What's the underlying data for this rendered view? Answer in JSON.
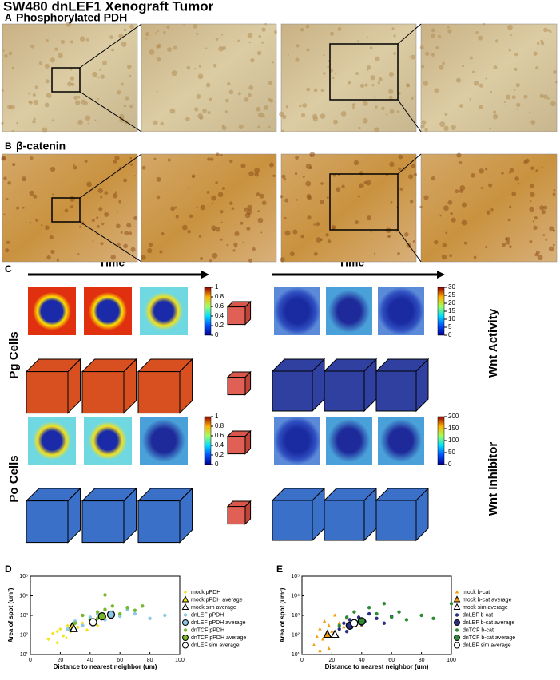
{
  "title": "SW480 dnLEF1 Xenograft Tumor",
  "panels": {
    "a": {
      "label": "A",
      "title": "Phosphorylated PDH"
    },
    "b": {
      "label": "B",
      "title": "β-catenin"
    },
    "c": {
      "label": "C",
      "time_labels": [
        "Time",
        "Time"
      ],
      "row_labels": [
        "Pg Cells",
        "Po Cells"
      ],
      "side_labels": [
        "Wnt Activity",
        "Wnt Inhibitor"
      ],
      "colorbars": [
        {
          "lim": [
            0,
            1
          ],
          "ticks": [
            0,
            0.2,
            0.4,
            0.6,
            0.8,
            1
          ]
        },
        {
          "lim": [
            0,
            30
          ],
          "ticks": [
            0,
            5,
            10,
            15,
            20,
            25,
            30
          ]
        },
        {
          "lim": [
            0,
            1
          ],
          "ticks": [
            0,
            0.2,
            0.4,
            0.6,
            0.8,
            1
          ]
        },
        {
          "lim": [
            0,
            200
          ],
          "ticks": [
            0,
            50,
            100,
            150,
            200
          ]
        }
      ]
    }
  },
  "chart_data": [
    {
      "type": "scatter",
      "label": "D",
      "xlabel": "Distance to nearest neighbor (um)",
      "ylabel": "Area of spot (um²)",
      "xlim": [
        0,
        100
      ],
      "xticks": [
        0,
        20,
        40,
        60,
        80,
        100
      ],
      "ylim": [
        10,
        100000
      ],
      "log_y": true,
      "yticks": [
        {
          "value": 10,
          "label": "10¹"
        },
        {
          "value": 100,
          "label": "10²"
        },
        {
          "value": 1000,
          "label": "10³"
        },
        {
          "value": 10000,
          "label": "10⁴"
        },
        {
          "value": 100000,
          "label": "10⁵"
        }
      ],
      "series": [
        {
          "name": "mock pPDH",
          "color": "#f2e41c",
          "marker": "diamond",
          "x": [
            12,
            15,
            18,
            20,
            22,
            25,
            27,
            30,
            32,
            35,
            38,
            42,
            45,
            50,
            18,
            24
          ],
          "y": [
            60,
            120,
            40,
            200,
            90,
            300,
            150,
            500,
            250,
            400,
            180,
            600,
            300,
            800,
            150,
            70
          ]
        },
        {
          "name": "mock pPDH average",
          "color": "#f2e41c",
          "marker": "triangle",
          "edge": "#000",
          "x": [
            28
          ],
          "y": [
            250
          ]
        },
        {
          "name": "mock sim average",
          "color": "#ffffff",
          "marker": "triangle",
          "edge": "#000",
          "x": [
            29
          ],
          "y": [
            200
          ]
        },
        {
          "name": "dnLEF pPDH",
          "color": "#8cc8e6",
          "marker": "circle",
          "x": [
            25,
            30,
            35,
            40,
            45,
            50,
            55,
            60,
            65,
            70,
            80,
            90
          ],
          "y": [
            200,
            500,
            300,
            800,
            1200,
            600,
            1500,
            900,
            2000,
            1200,
            700,
            1000
          ]
        },
        {
          "name": "dnLEF pPDH average",
          "color": "#8cc8e6",
          "marker": "circle",
          "edge": "#000",
          "x": [
            54
          ],
          "y": [
            1100
          ]
        },
        {
          "name": "dnTCF pPDH",
          "color": "#76b82a",
          "marker": "circle",
          "x": [
            30,
            35,
            40,
            45,
            50,
            55,
            60,
            65,
            70,
            75,
            50,
            45
          ],
          "y": [
            400,
            1000,
            600,
            1500,
            2000,
            3000,
            1200,
            2500,
            1800,
            3000,
            11000,
            700
          ]
        },
        {
          "name": "dnTCF pPDH average",
          "color": "#76b82a",
          "marker": "circle",
          "edge": "#000",
          "x": [
            48
          ],
          "y": [
            900
          ]
        },
        {
          "name": "dnLEF sim average",
          "color": "#ffffff",
          "marker": "circle",
          "edge": "#000",
          "x": [
            42
          ],
          "y": [
            450
          ]
        }
      ]
    },
    {
      "type": "scatter",
      "label": "E",
      "xlabel": "Distance to nearest neighbor (um)",
      "ylabel": "Area of spot (um²)",
      "xlim": [
        0,
        100
      ],
      "xticks": [
        0,
        20,
        40,
        60,
        80,
        100
      ],
      "ylim": [
        10,
        100000
      ],
      "log_y": true,
      "yticks": [
        {
          "value": 10,
          "label": "10¹"
        },
        {
          "value": 100,
          "label": "10²"
        },
        {
          "value": 1000,
          "label": "10³"
        },
        {
          "value": 10000,
          "label": "10⁴"
        },
        {
          "value": 100000,
          "label": "10⁵"
        }
      ],
      "series": [
        {
          "name": "mock b-cat",
          "color": "#f39c12",
          "marker": "triangle",
          "x": [
            8,
            10,
            12,
            14,
            15,
            16,
            18,
            20,
            22,
            25,
            28,
            30,
            35,
            40,
            12,
            18
          ],
          "y": [
            30,
            80,
            200,
            60,
            500,
            100,
            300,
            150,
            1000,
            400,
            250,
            700,
            500,
            300,
            15,
            20
          ]
        },
        {
          "name": "mock b-cat average",
          "color": "#f39c12",
          "marker": "triangle",
          "edge": "#000",
          "x": [
            17
          ],
          "y": [
            100
          ]
        },
        {
          "name": "mock sim average",
          "color": "#ffffff",
          "marker": "triangle",
          "edge": "#000",
          "x": [
            22
          ],
          "y": [
            100
          ]
        },
        {
          "name": "dnLEF b-cat",
          "color": "#2b2e83",
          "marker": "circle",
          "x": [
            25,
            28,
            30,
            32,
            35,
            38,
            40,
            42,
            45,
            50,
            55,
            60
          ],
          "y": [
            200,
            400,
            150,
            600,
            300,
            800,
            350,
            500,
            1200,
            700,
            400,
            900
          ]
        },
        {
          "name": "dnLEF b-cat average",
          "color": "#2b2e83",
          "marker": "circle",
          "edge": "#000",
          "x": [
            32
          ],
          "y": [
            300
          ]
        },
        {
          "name": "dnTCF b-cat",
          "color": "#2e8b34",
          "marker": "circle",
          "x": [
            25,
            30,
            35,
            40,
            45,
            50,
            55,
            60,
            65,
            70,
            80,
            88,
            100
          ],
          "y": [
            300,
            800,
            1500,
            600,
            2500,
            1200,
            4000,
            800,
            1500,
            600,
            1000,
            700,
            4000
          ]
        },
        {
          "name": "dnTCF b-cat average",
          "color": "#2e8b34",
          "marker": "circle",
          "edge": "#000",
          "x": [
            40
          ],
          "y": [
            500
          ]
        },
        {
          "name": "dnLEF sim average",
          "color": "#ffffff",
          "marker": "circle",
          "edge": "#000",
          "x": [
            35
          ],
          "y": [
            400
          ]
        }
      ]
    }
  ]
}
